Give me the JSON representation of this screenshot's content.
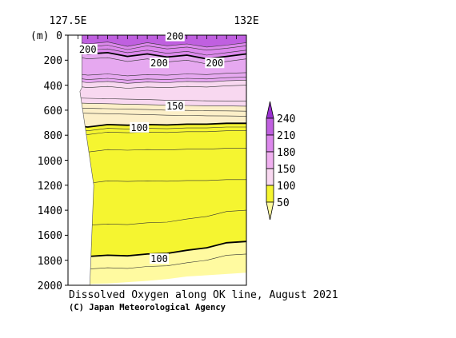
{
  "chart_data": {
    "type": "heatmap",
    "title": "Dissolved Oxygen along OK line, August 2021",
    "credit": "(C) Japan Meteorological Agency",
    "x_tick_labels": [
      "127.5E",
      "132E"
    ],
    "x_range": [
      127.5,
      132.0
    ],
    "y_unit_label": "(m)",
    "y_tick_labels": [
      "0",
      "200",
      "400",
      "600",
      "800",
      "1000",
      "1200",
      "1400",
      "1600",
      "1800",
      "2000"
    ],
    "y_ticks": [
      0,
      200,
      400,
      600,
      800,
      1000,
      1200,
      1400,
      1600,
      1800,
      2000
    ],
    "y_range": [
      0,
      2000
    ],
    "y_inverted": true,
    "colorbar": {
      "levels": [
        50,
        100,
        150,
        180,
        210,
        240
      ],
      "tick_labels": [
        "50",
        "100",
        "150",
        "180",
        "210",
        "240"
      ],
      "colors": [
        "#fffaa0",
        "#f5f530",
        "#f8d8f0",
        "#f0b0f0",
        "#dc88ec",
        "#c060e0",
        "#9a30d0"
      ]
    },
    "contour_labels": [
      {
        "text": "200",
        "lon": 130.2,
        "depth": 10
      },
      {
        "text": "200",
        "lon": 128.0,
        "depth": 115
      },
      {
        "text": "200",
        "lon": 129.8,
        "depth": 225
      },
      {
        "text": "200",
        "lon": 131.2,
        "depth": 225
      },
      {
        "text": "150",
        "lon": 130.2,
        "depth": 570
      },
      {
        "text": "100",
        "lon": 129.3,
        "depth": 740
      },
      {
        "text": "100",
        "lon": 129.8,
        "depth": 1790
      }
    ]
  }
}
